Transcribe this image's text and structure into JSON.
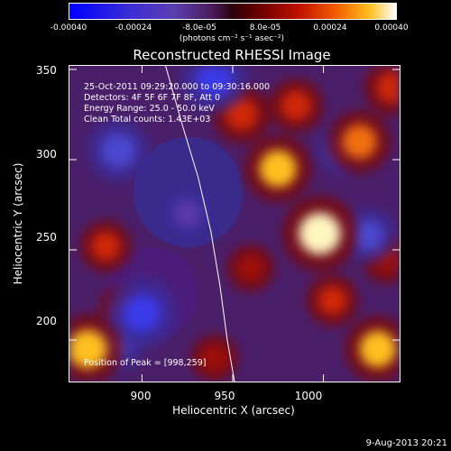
{
  "colorbar": {
    "ticks": [
      "-0.00040",
      "-0.00024",
      "-8.0e-05",
      "8.0e-05",
      "0.00024",
      "0.00040"
    ],
    "tick_values": [
      -0.0004,
      -0.00024,
      -8e-05,
      8e-05,
      0.00024,
      0.0004
    ],
    "range": [
      -0.0004,
      0.0004
    ],
    "unit_label": "(photons cm⁻² s⁻¹ asec⁻²)",
    "colors": [
      "#0000ff",
      "#5b3fb0",
      "#2a0008",
      "#c01000",
      "#f26000",
      "#ffc020",
      "#ffffff"
    ]
  },
  "info_lines": [
    "25-Oct-2011 09:29:20.000 to 09:30:16.000",
    "Detectors: 4F 5F 6F 7F 8F, Att 0",
    "Energy Range: 25.0 - 50.0 keV",
    "Clean     Total counts: 1.43E+03"
  ],
  "peak_text": "Position of Peak = [998,259]",
  "timestamp": "9-Aug-2013 20:21",
  "chart_data": {
    "type": "heatmap",
    "title": "Reconstructed RHESSI Image",
    "xlabel": "Heliocentric X (arcsec)",
    "ylabel": "Heliocentric Y (arcsec)",
    "xlim": [
      860,
      1042
    ],
    "ylim": [
      177,
      352
    ],
    "xticks": [
      900,
      950,
      1000
    ],
    "yticks": [
      200,
      250,
      300,
      350
    ],
    "peak": [
      998,
      259
    ],
    "limb_curve": [
      [
        913,
        352
      ],
      [
        922,
        320
      ],
      [
        931,
        290
      ],
      [
        938,
        260
      ],
      [
        943,
        230
      ],
      [
        947,
        200
      ],
      [
        951,
        177
      ]
    ],
    "sources": [
      {
        "x": 998,
        "y": 259,
        "level": 1.0
      },
      {
        "x": 975,
        "y": 295,
        "level": 0.82
      },
      {
        "x": 1020,
        "y": 310,
        "level": 0.72
      },
      {
        "x": 955,
        "y": 325,
        "level": 0.62
      },
      {
        "x": 985,
        "y": 330,
        "level": 0.55
      },
      {
        "x": 870,
        "y": 195,
        "level": 0.88
      },
      {
        "x": 1030,
        "y": 195,
        "level": 0.8
      },
      {
        "x": 880,
        "y": 252,
        "level": 0.5
      },
      {
        "x": 890,
        "y": 217,
        "level": 0.45
      },
      {
        "x": 1005,
        "y": 222,
        "level": 0.5
      },
      {
        "x": 1035,
        "y": 245,
        "level": 0.45
      },
      {
        "x": 960,
        "y": 240,
        "level": 0.4
      },
      {
        "x": 1038,
        "y": 340,
        "level": 0.6
      },
      {
        "x": 940,
        "y": 190,
        "level": 0.4
      }
    ],
    "dips": [
      {
        "x": 887,
        "y": 305,
        "level": -0.7
      },
      {
        "x": 900,
        "y": 215,
        "level": -0.85
      },
      {
        "x": 885,
        "y": 198,
        "level": -0.6
      },
      {
        "x": 1025,
        "y": 258,
        "level": -0.55
      },
      {
        "x": 940,
        "y": 345,
        "level": -0.8
      },
      {
        "x": 925,
        "y": 270,
        "level": -0.45
      },
      {
        "x": 1010,
        "y": 305,
        "level": -0.4
      }
    ]
  }
}
